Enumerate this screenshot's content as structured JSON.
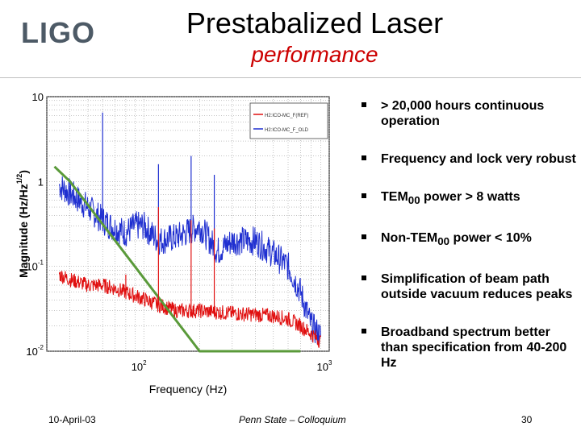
{
  "logo": {
    "text": "LIGO"
  },
  "slide": {
    "title": "Prestabalized Laser",
    "subtitle": "performance"
  },
  "bullets": [
    {
      "text": "> 20,000 hours continuous operation"
    },
    {
      "text": "Frequency and lock very robust"
    },
    {
      "prefix": "TEM",
      "sub": "00",
      "suffix": " power > 8 watts"
    },
    {
      "prefix": "Non-TEM",
      "sub": "00",
      "suffix": " power < 10%"
    },
    {
      "text": "Simplification of beam path outside vacuum reduces peaks"
    },
    {
      "text": "Broadband spectrum better than specification from 40-200 Hz"
    }
  ],
  "footer": {
    "date": "10-April-03",
    "venue": "Penn State – Colloquium",
    "page": "30"
  },
  "colors": {
    "accent": "#cc0000",
    "series_blue": "#1f2fd0",
    "series_red": "#e01010",
    "spec_green": "#5a9a3a"
  },
  "chart_data": {
    "type": "line",
    "title": "",
    "xlabel": "Frequency (Hz)",
    "ylabel": "Magnitude (Hz/Hz^1/2)",
    "xscale": "log",
    "yscale": "log",
    "xlim": [
      30,
      1000
    ],
    "ylim": [
      0.01,
      10
    ],
    "x_tick_labels": [
      {
        "base": "10",
        "exp": "2"
      },
      {
        "base": "10",
        "exp": "3"
      }
    ],
    "y_tick_labels": [
      {
        "base": "10",
        "exp": ""
      },
      {
        "base": "1",
        "exp": ""
      },
      {
        "base": "10",
        "exp": "-1"
      },
      {
        "base": "10",
        "exp": "-2"
      }
    ],
    "ylabel_main": "Magnitude (Hz/Hz",
    "ylabel_exp": "1/2",
    "ylabel_close": ")",
    "legend": {
      "position": "top-right",
      "entries": [
        {
          "name": "H2:ICO-MC_F(REF)",
          "color": "#e01010"
        },
        {
          "name": "H2:ICO-MC_F_OLD",
          "color": "#1f2fd0"
        }
      ]
    },
    "series": [
      {
        "name": "H2:ICO-MC_F_OLD",
        "color": "#1f2fd0",
        "x": [
          35,
          45,
          60,
          70,
          80,
          90,
          100,
          120,
          150,
          200,
          250,
          300,
          400,
          500,
          600,
          700,
          800,
          900
        ],
        "y": [
          0.9,
          0.6,
          0.35,
          0.28,
          0.25,
          0.3,
          0.3,
          0.2,
          0.22,
          0.3,
          0.15,
          0.2,
          0.2,
          0.14,
          0.1,
          0.05,
          0.02,
          0.015
        ]
      },
      {
        "name": "H2:ICO-MC_F(REF)",
        "color": "#e01010",
        "x": [
          35,
          40,
          50,
          60,
          70,
          90,
          120,
          150,
          200,
          300,
          400,
          500,
          600,
          700,
          800,
          900
        ],
        "y": [
          0.08,
          0.07,
          0.06,
          0.06,
          0.055,
          0.045,
          0.035,
          0.03,
          0.03,
          0.028,
          0.027,
          0.026,
          0.024,
          0.02,
          0.016,
          0.013
        ]
      },
      {
        "name": "specification",
        "color": "#5a9a3a",
        "x": [
          33,
          40,
          200,
          700
        ],
        "y": [
          1.5,
          1.0,
          0.01,
          0.01
        ]
      }
    ],
    "peaks": [
      {
        "series": "H2:ICO-MC_F_OLD",
        "x": 60,
        "y": 6.5
      },
      {
        "series": "H2:ICO-MC_F_OLD",
        "x": 120,
        "y": 1.6
      },
      {
        "series": "H2:ICO-MC_F_OLD",
        "x": 180,
        "y": 2.0
      },
      {
        "series": "H2:ICO-MC_F_OLD",
        "x": 240,
        "y": 1.2
      },
      {
        "series": "H2:ICO-MC_F(REF)",
        "x": 80,
        "y": 0.08
      },
      {
        "series": "H2:ICO-MC_F(REF)",
        "x": 120,
        "y": 0.5
      },
      {
        "series": "H2:ICO-MC_F(REF)",
        "x": 180,
        "y": 0.35
      },
      {
        "series": "H2:ICO-MC_F(REF)",
        "x": 240,
        "y": 0.28
      }
    ]
  }
}
